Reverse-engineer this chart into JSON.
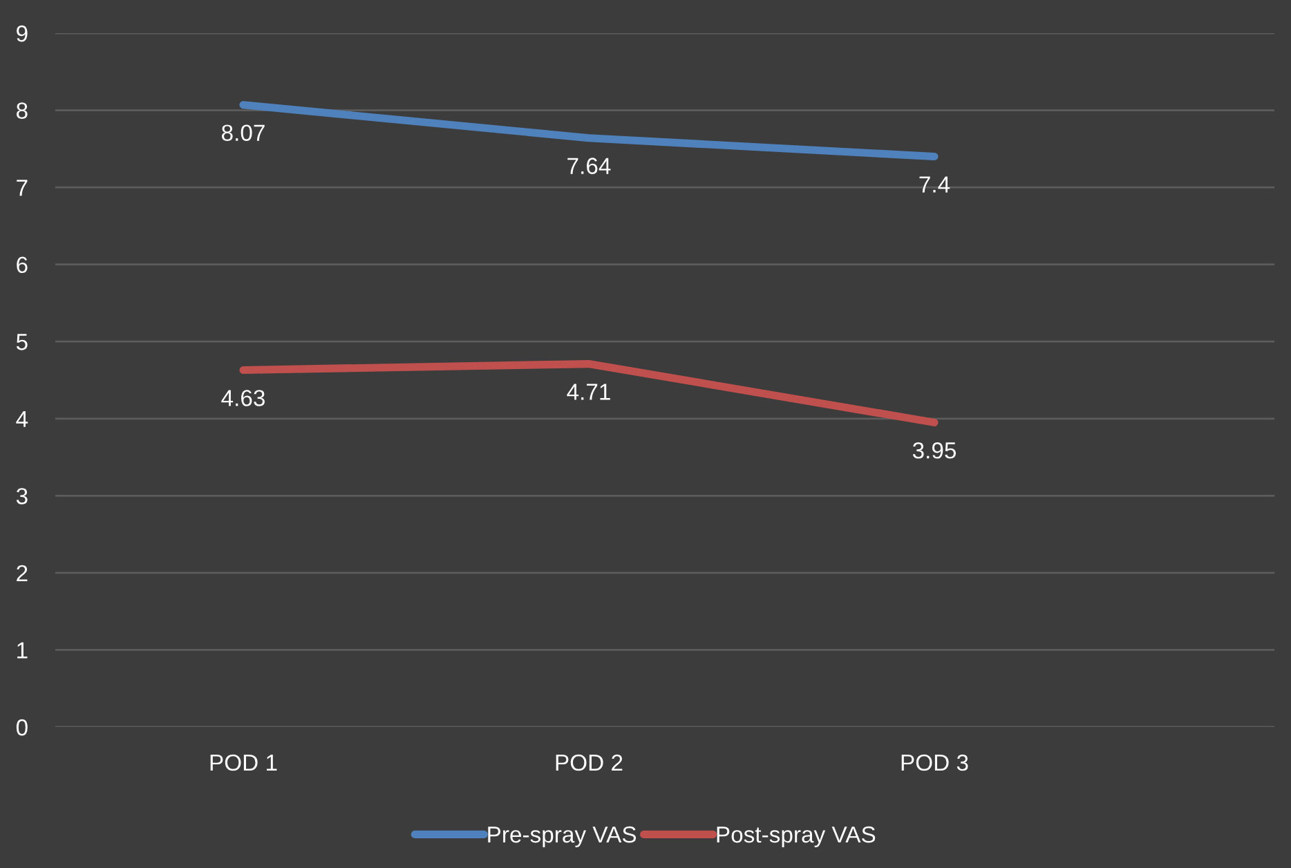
{
  "chart_data": {
    "type": "line",
    "categories": [
      "POD 1",
      "POD 2",
      "POD 3"
    ],
    "series": [
      {
        "name": "Pre-spray VAS",
        "color": "#4f81bd",
        "values": [
          8.07,
          7.64,
          7.4
        ]
      },
      {
        "name": "Post-spray VAS",
        "color": "#c0504d",
        "values": [
          4.63,
          4.71,
          3.95
        ]
      }
    ],
    "ylim": [
      0,
      9
    ],
    "yticks": [
      0,
      1,
      2,
      3,
      4,
      5,
      6,
      7,
      8,
      9
    ],
    "grid": "y",
    "legend": "bottom",
    "data_labels": true,
    "marker": "none",
    "line_style": "solid"
  }
}
